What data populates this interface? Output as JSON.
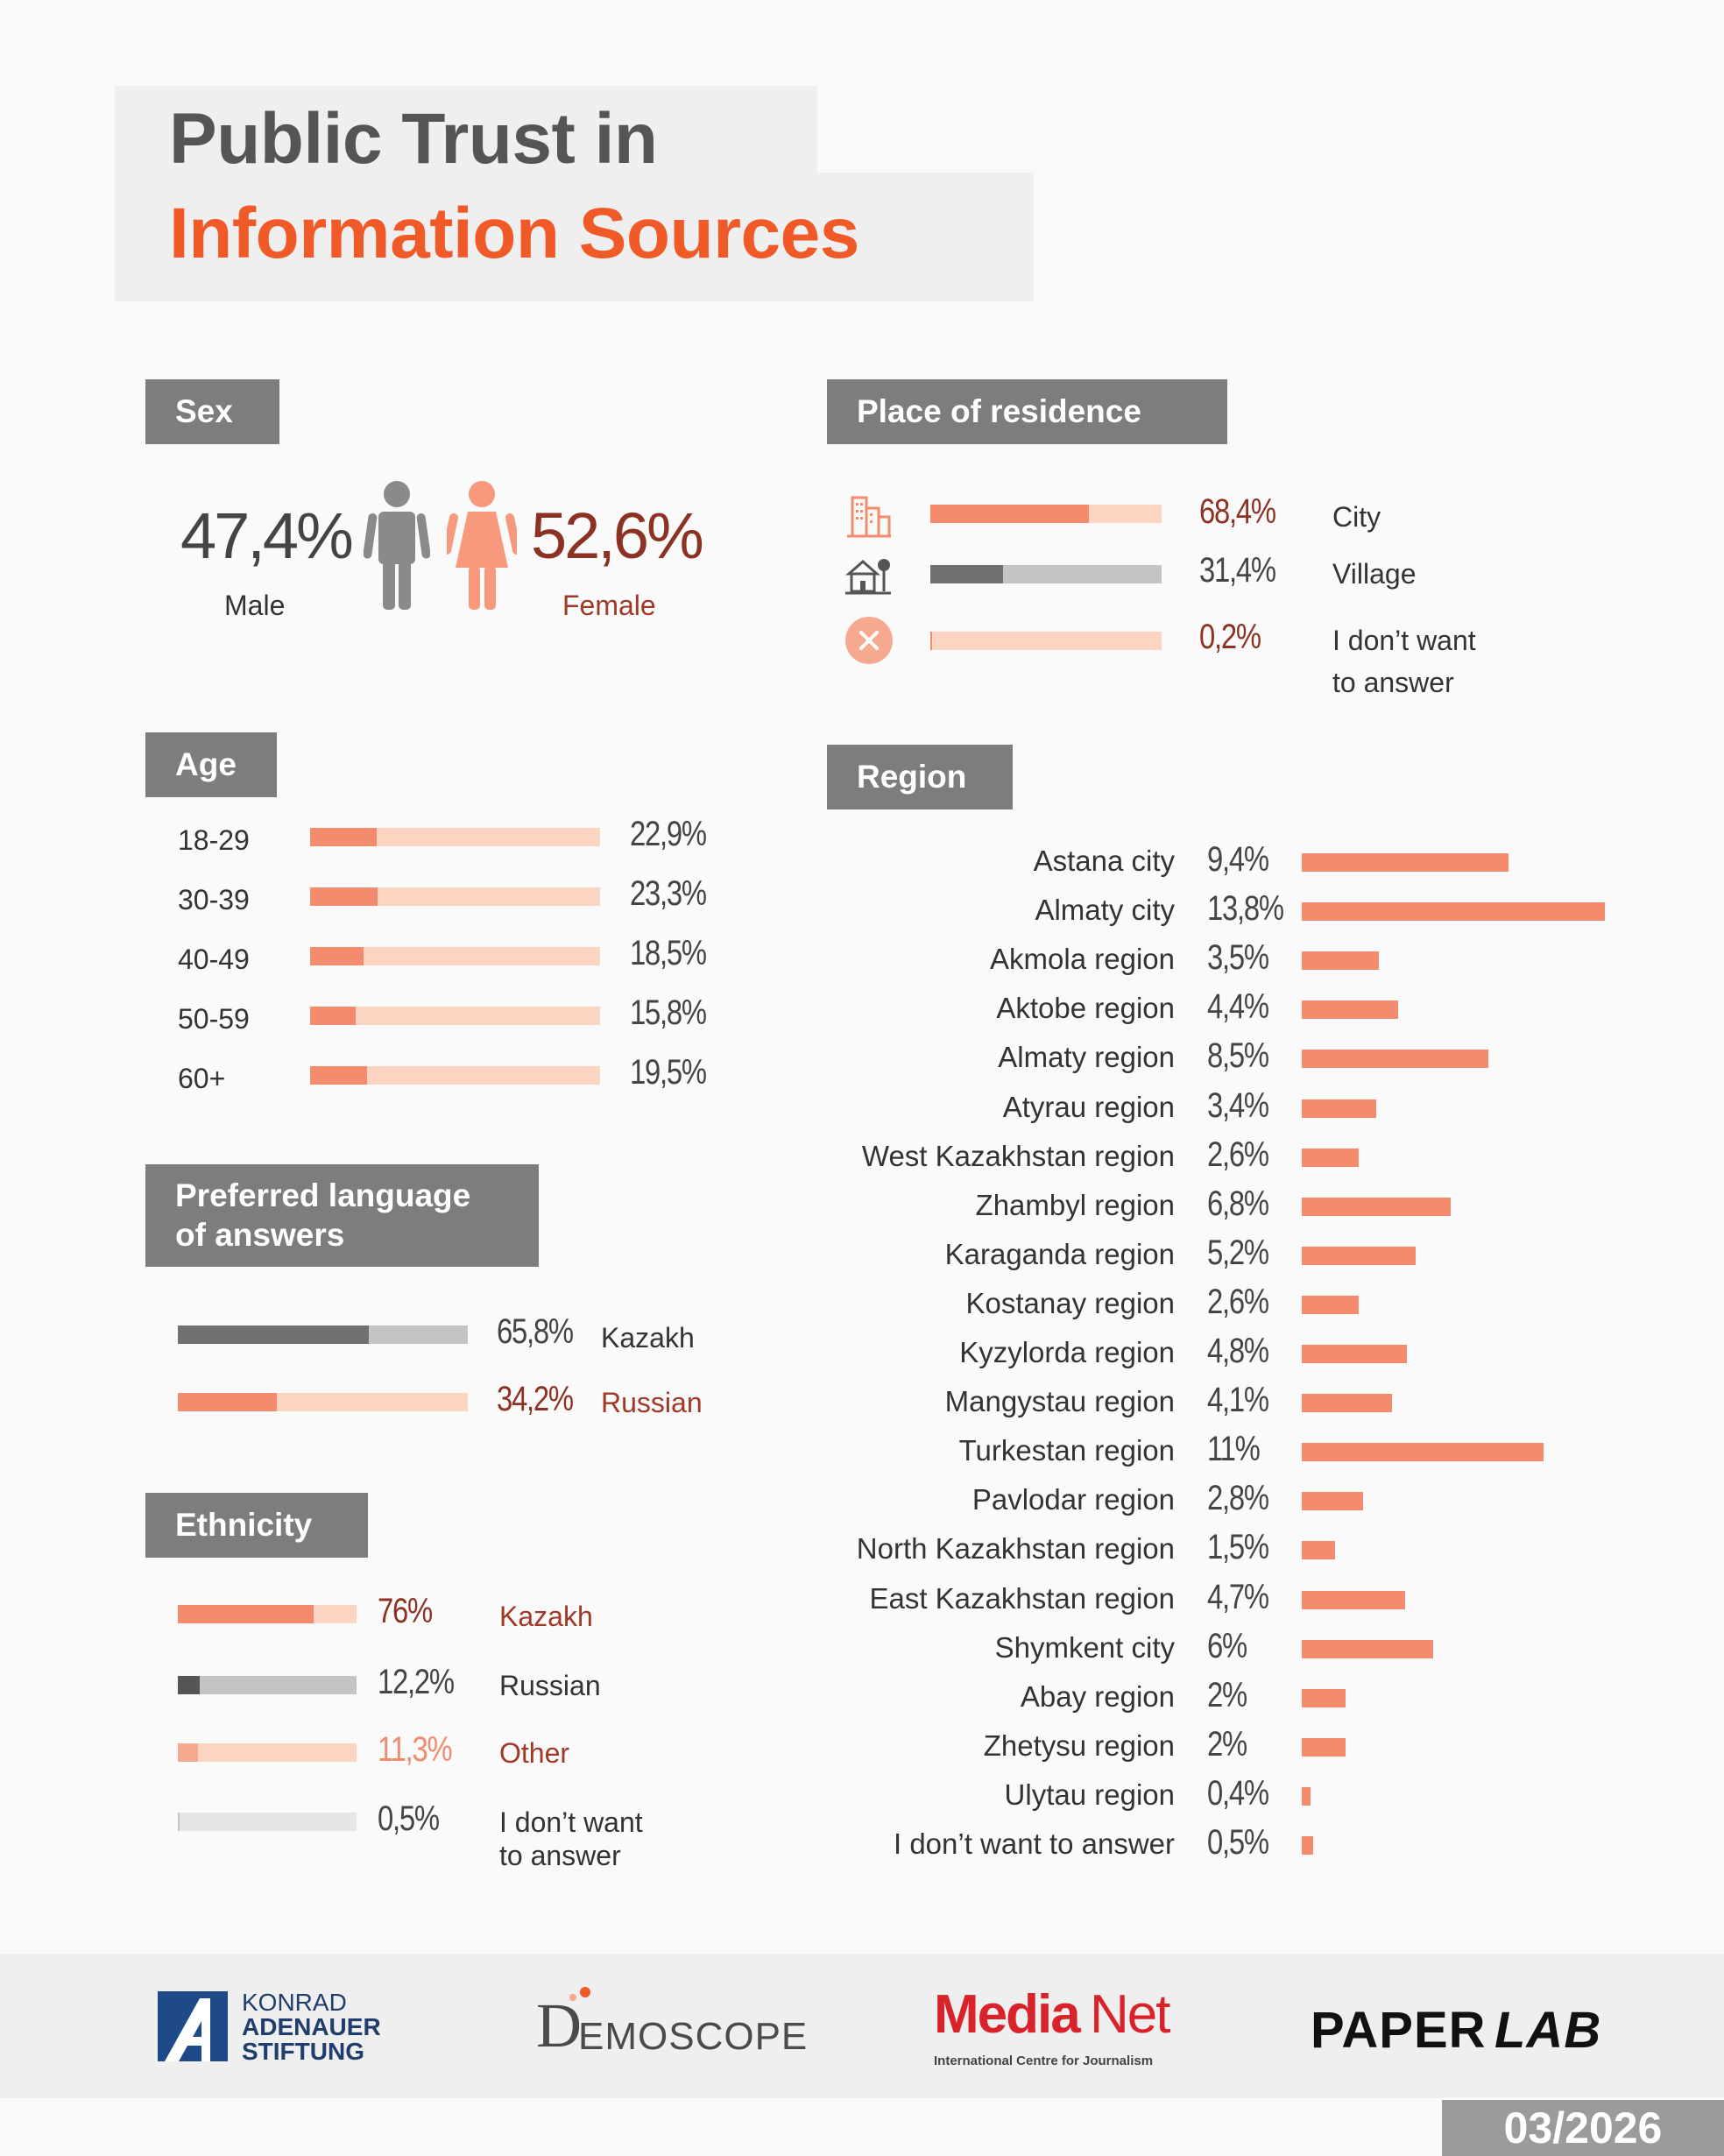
{
  "title": {
    "line1": "Public Trust in",
    "line2": "Information Sources"
  },
  "colors": {
    "accent": "#f05a28",
    "bar": "#f38b6c",
    "bar_light": "#fcd4c2",
    "gray_dark": "#707070",
    "gray_light": "#c4c4c4",
    "label_bg": "#7d7d7f",
    "dark_red": "#8b3222"
  },
  "sex": {
    "label": "Sex",
    "male": {
      "value": "47,4%",
      "label": "Male"
    },
    "female": {
      "value": "52,6%",
      "label": "Female"
    }
  },
  "residence": {
    "label": "Place of residence",
    "items": [
      {
        "value": "68,4%",
        "label": "City",
        "pct": 68.4,
        "icon": "city-icon"
      },
      {
        "value": "31,4%",
        "label": "Village",
        "pct": 31.4,
        "icon": "village-icon"
      },
      {
        "value": "0,2%",
        "label": "I don’t want",
        "label2": "to answer",
        "pct": 0.2,
        "icon": "decline-icon"
      }
    ]
  },
  "age": {
    "label": "Age",
    "items": [
      {
        "label": "18-29",
        "value": "22,9%",
        "pct": 22.9
      },
      {
        "label": "30-39",
        "value": "23,3%",
        "pct": 23.3
      },
      {
        "label": "40-49",
        "value": "18,5%",
        "pct": 18.5
      },
      {
        "label": "50-59",
        "value": "15,8%",
        "pct": 15.8
      },
      {
        "label": "60+",
        "value": "19,5%",
        "pct": 19.5
      }
    ]
  },
  "language": {
    "label1": "Preferred language",
    "label2": "of answers",
    "items": [
      {
        "value": "65,8%",
        "label": "Kazakh",
        "pct": 65.8
      },
      {
        "value": "34,2%",
        "label": "Russian",
        "pct": 34.2
      }
    ]
  },
  "ethnicity": {
    "label": "Ethnicity",
    "items": [
      {
        "value": "76%",
        "label": "Kazakh",
        "pct": 76
      },
      {
        "value": "12,2%",
        "label": "Russian",
        "pct": 12.2
      },
      {
        "value": "11,3%",
        "label": "Other",
        "pct": 11.3
      },
      {
        "value": "0,5%",
        "label": "I don’t want",
        "label2": "to answer",
        "pct": 0.5
      }
    ]
  },
  "region": {
    "label": "Region",
    "items": [
      {
        "label": "Astana city",
        "value": "9,4%",
        "pct": 9.4
      },
      {
        "label": "Almaty city",
        "value": "13,8%",
        "pct": 13.8
      },
      {
        "label": "Akmola region",
        "value": "3,5%",
        "pct": 3.5
      },
      {
        "label": "Aktobe region",
        "value": "4,4%",
        "pct": 4.4
      },
      {
        "label": "Almaty region",
        "value": "8,5%",
        "pct": 8.5
      },
      {
        "label": "Atyrau region",
        "value": "3,4%",
        "pct": 3.4
      },
      {
        "label": "West Kazakhstan region",
        "value": "2,6%",
        "pct": 2.6
      },
      {
        "label": "Zhambyl region",
        "value": "6,8%",
        "pct": 6.8
      },
      {
        "label": "Karaganda region",
        "value": "5,2%",
        "pct": 5.2
      },
      {
        "label": "Kostanay region",
        "value": "2,6%",
        "pct": 2.6
      },
      {
        "label": "Kyzylorda region",
        "value": "4,8%",
        "pct": 4.8
      },
      {
        "label": "Mangystau region",
        "value": "4,1%",
        "pct": 4.1
      },
      {
        "label": "Turkestan region",
        "value": "11%",
        "pct": 11
      },
      {
        "label": "Pavlodar region",
        "value": "2,8%",
        "pct": 2.8
      },
      {
        "label": "North Kazakhstan region",
        "value": "1,5%",
        "pct": 1.5
      },
      {
        "label": "East Kazakhstan region",
        "value": "4,7%",
        "pct": 4.7
      },
      {
        "label": "Shymkent city",
        "value": "6%",
        "pct": 6
      },
      {
        "label": "Abay region",
        "value": "2%",
        "pct": 2
      },
      {
        "label": "Zhetysu region",
        "value": "2%",
        "pct": 2
      },
      {
        "label": "Ulytau region",
        "value": "0,4%",
        "pct": 0.4
      },
      {
        "label": "I don’t want to answer",
        "value": "0,5%",
        "pct": 0.5
      }
    ]
  },
  "chart_data": [
    {
      "type": "bar",
      "title": "Age",
      "categories": [
        "18-29",
        "30-39",
        "40-49",
        "50-59",
        "60+"
      ],
      "values": [
        22.9,
        23.3,
        18.5,
        15.8,
        19.5
      ],
      "ylim": [
        0,
        100
      ]
    },
    {
      "type": "bar",
      "title": "Place of residence",
      "categories": [
        "City",
        "Village",
        "I don’t want to answer"
      ],
      "values": [
        68.4,
        31.4,
        0.2
      ],
      "ylim": [
        0,
        100
      ]
    },
    {
      "type": "bar",
      "title": "Preferred language of answers",
      "categories": [
        "Kazakh",
        "Russian"
      ],
      "values": [
        65.8,
        34.2
      ],
      "ylim": [
        0,
        100
      ]
    },
    {
      "type": "bar",
      "title": "Ethnicity",
      "categories": [
        "Kazakh",
        "Russian",
        "Other",
        "I don’t want to answer"
      ],
      "values": [
        76,
        12.2,
        11.3,
        0.5
      ],
      "ylim": [
        0,
        100
      ]
    },
    {
      "type": "bar",
      "title": "Sex",
      "categories": [
        "Male",
        "Female"
      ],
      "values": [
        47.4,
        52.6
      ]
    },
    {
      "type": "bar",
      "title": "Region",
      "categories": [
        "Astana city",
        "Almaty city",
        "Akmola region",
        "Aktobe region",
        "Almaty region",
        "Atyrau region",
        "West Kazakhstan region",
        "Zhambyl region",
        "Karaganda region",
        "Kostanay region",
        "Kyzylorda region",
        "Mangystau region",
        "Turkestan region",
        "Pavlodar region",
        "North Kazakhstan region",
        "East Kazakhstan region",
        "Shymkent city",
        "Abay region",
        "Zhetysu region",
        "Ulytau region",
        "I don’t want to answer"
      ],
      "values": [
        9.4,
        13.8,
        3.5,
        4.4,
        8.5,
        3.4,
        2.6,
        6.8,
        5.2,
        2.6,
        4.8,
        4.1,
        11,
        2.8,
        1.5,
        4.7,
        6,
        2,
        2,
        0.4,
        0.5
      ],
      "xlim": [
        0,
        13.8
      ]
    }
  ],
  "footer": {
    "kas": {
      "line1": "KONRAD",
      "line2": "ADENAUER",
      "line3": "STIFTUNG"
    },
    "demoscope": {
      "initial": "D",
      "rest": "EMOSCOPE"
    },
    "medianet": {
      "media": "Media",
      "net": "Net",
      "tagline": "International Centre for Journalism"
    },
    "paperlab": {
      "paper": "PAPER",
      "lab": "LAB"
    },
    "date": "03/2026"
  }
}
